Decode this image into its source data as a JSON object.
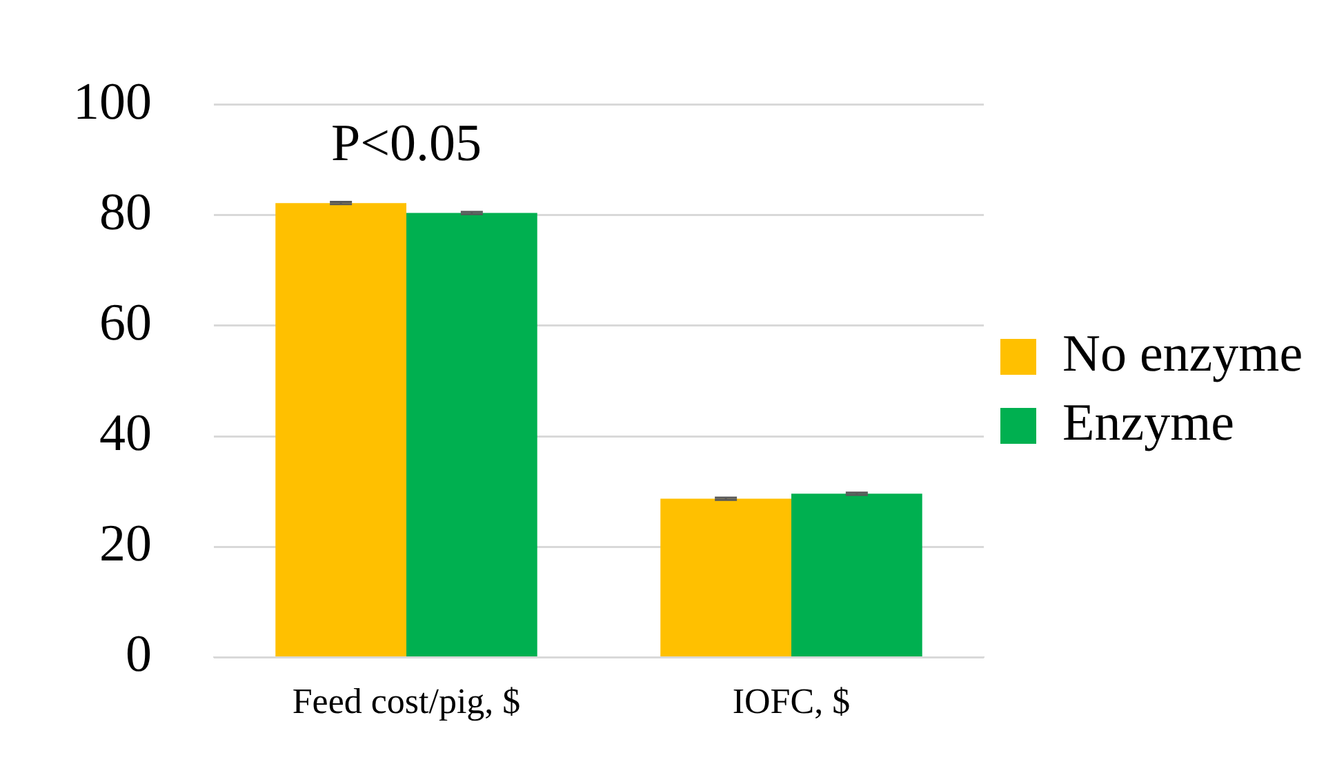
{
  "chart_data": {
    "type": "bar",
    "categories": [
      "Feed cost/pig, $",
      "IOFC, $"
    ],
    "series": [
      {
        "name": "No enzyme",
        "color": "#ffc000",
        "values": [
          82.2,
          28.7
        ],
        "errors": [
          0.2,
          0.2
        ]
      },
      {
        "name": "Enzyme",
        "color": "#00b050",
        "values": [
          80.4,
          29.6
        ],
        "errors": [
          0.2,
          0.2
        ]
      }
    ],
    "ylim": [
      0,
      100
    ],
    "yticks": [
      0,
      20,
      40,
      60,
      80,
      100
    ],
    "grid": "y",
    "legend": "right",
    "annotations": [
      "P<0.05"
    ]
  }
}
